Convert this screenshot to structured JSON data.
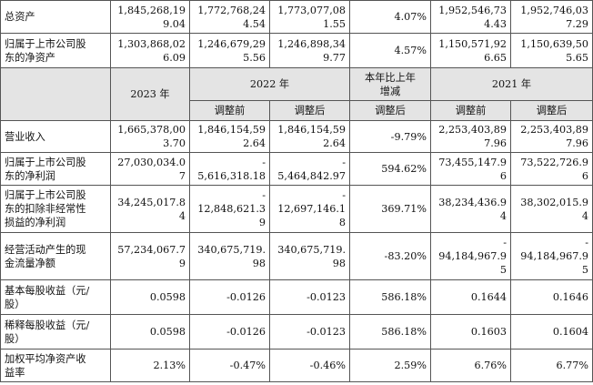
{
  "top_rows": [
    {
      "label": "总资产",
      "cells": [
        "1,845,268,19\n9.04",
        "1,772,768,24\n4.54",
        "1,773,077,08\n1.55",
        "4.07%",
        "1,952,546,73\n4.43",
        "1,952,746,03\n7.29"
      ]
    },
    {
      "label": "归属于上市公司股\n东的净资产",
      "cells": [
        "1,303,868,02\n6.09",
        "1,246,679,29\n5.56",
        "1,246,898,34\n9.77",
        "4.57%",
        "1,150,571,92\n6.65",
        "1,150,639,50\n5.65"
      ]
    }
  ],
  "header": {
    "year_2023": "2023 年",
    "year_2022": "2022 年",
    "change": "本年比上年\n增减",
    "year_2021": "2021 年",
    "before_adj": "调整前",
    "after_adj": "调整后",
    "change_after": "调整后",
    "before_adj_2021": "调整前",
    "after_adj_2021": "调整后"
  },
  "rows": [
    {
      "label": "营业收入",
      "cells": [
        "1,665,378,00\n3.70",
        "1,846,154,59\n2.64",
        "1,846,154,59\n2.64",
        "-9.79%",
        "2,253,403,89\n7.96",
        "2,253,403,89\n7.96"
      ]
    },
    {
      "label": "归属于上市公司股\n东的净利润",
      "cells": [
        "27,030,034.0\n7",
        "-\n5,616,318.18",
        "-\n5,464,842.97",
        "594.62%",
        "73,455,147.9\n6",
        "73,522,726.9\n6"
      ]
    },
    {
      "label": "归属于上市公司股\n东的扣除非经常性\n损益的净利润",
      "cells": [
        "34,245,017.8\n4",
        "-\n12,848,621.3\n9",
        "-\n12,697,146.1\n8",
        "369.71%",
        "38,234,436.9\n4",
        "38,302,015.9\n4"
      ]
    },
    {
      "label": "经营活动产生的现\n金流量净额",
      "cells": [
        "57,234,067.7\n9",
        "340,675,719.\n98",
        "340,675,719.\n98",
        "-83.20%",
        "-\n94,184,967.9\n5",
        "-\n94,184,967.9\n5"
      ]
    },
    {
      "label": "基本每股收益（元/\n股）",
      "cells": [
        "0.0598",
        "-0.0126",
        "-0.0123",
        "586.18%",
        "0.1644",
        "0.1646"
      ]
    },
    {
      "label": "稀释每股收益（元/\n股）",
      "cells": [
        "0.0598",
        "-0.0126",
        "-0.0123",
        "586.18%",
        "0.1603",
        "0.1604"
      ]
    },
    {
      "label": "加权平均净资产收\n益率",
      "cells": [
        "2.13%",
        "-0.47%",
        "-0.46%",
        "2.59%",
        "6.76%",
        "6.77%"
      ]
    }
  ]
}
